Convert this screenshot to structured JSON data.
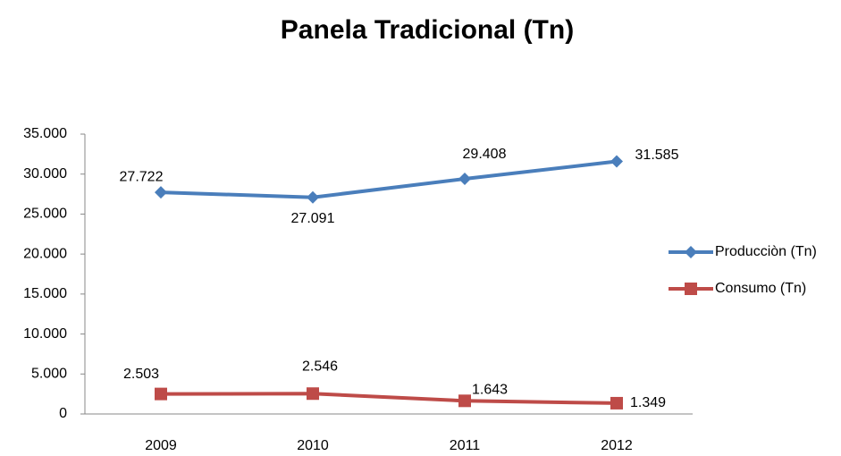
{
  "chart_data": {
    "type": "line",
    "title": "Panela Tradicional  (Tn)",
    "categories": [
      "2009",
      "2010",
      "2011",
      "2012"
    ],
    "series": [
      {
        "name": "Producciòn (Tn)",
        "color": "#4a7ebb",
        "marker": "diamond",
        "values": [
          27722,
          27091,
          29408,
          31585
        ],
        "value_labels": [
          "27.722",
          "27.091",
          "29.408",
          "31.585"
        ]
      },
      {
        "name": "Consumo (Tn)",
        "color": "#be4b48",
        "marker": "square",
        "values": [
          2503,
          2546,
          1643,
          1349
        ],
        "value_labels": [
          "2.503",
          "2.546",
          "1.643",
          "1.349"
        ]
      }
    ],
    "ylim": [
      0,
      35000
    ],
    "yticks": [
      0,
      {
        "value": 5000,
        "label": "5.000"
      },
      {
        "value": 10000,
        "label": "10.000"
      },
      {
        "value": 15000,
        "label": "15.000"
      },
      {
        "value": 20000,
        "label": "20.000"
      },
      {
        "value": 25000,
        "label": "25.000"
      },
      {
        "value": 30000,
        "label": "30.000"
      },
      {
        "value": 35000,
        "label": "35.000"
      }
    ],
    "legend": "right"
  }
}
